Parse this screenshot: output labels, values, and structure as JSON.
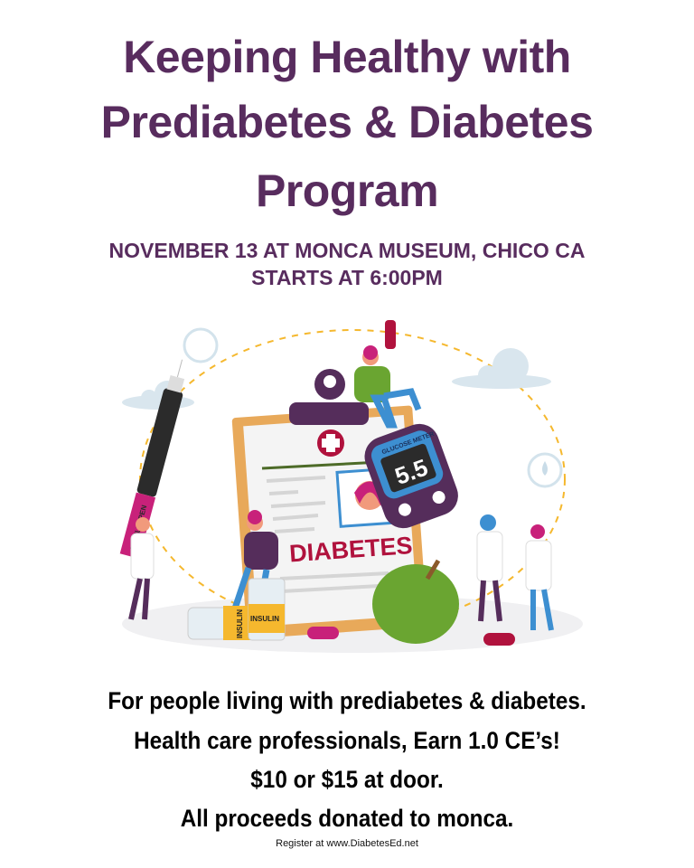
{
  "title": {
    "line1": "Keeping Healthy with",
    "line2": "Prediabetes & Diabetes",
    "line3": "Program"
  },
  "event": {
    "date_location": "NOVEMBER 13 AT MONCA MUSEUM, CHICO CA",
    "time": "STARTS AT 6:00PM"
  },
  "illustration": {
    "clipboard_label": "DIABETES",
    "meter_label": "GLUCOSE METER",
    "meter_reading": "5.5",
    "vial_label_1": "INSULIN",
    "vial_label_2": "INSULIN",
    "pen_label": "INSULIN PEN"
  },
  "details": [
    "For people living with prediabetes & diabetes.",
    "Health care professionals, Earn 1.0 CE’s!",
    "$10 or $15 at door.",
    "All proceeds donated to monca."
  ],
  "register": "Register at www.DiabetesEd.net",
  "colors": {
    "title": "#582c5e",
    "accent_red": "#b0123d",
    "apple_green": "#6aa531",
    "clipboard": "#e8a95a"
  }
}
